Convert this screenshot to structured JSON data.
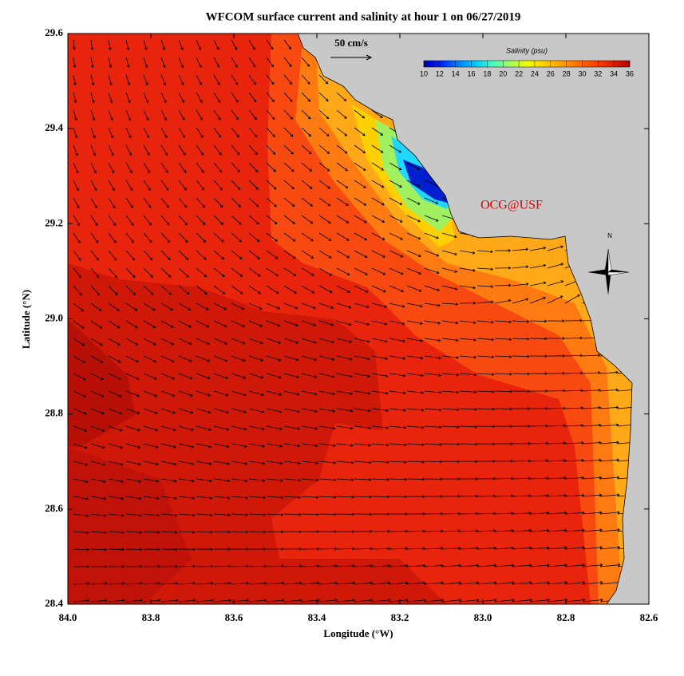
{
  "title": "WFCOM surface current and salinity at hour 1 on 06/27/2019",
  "map": {
    "xlabel": "Longitude (°W)",
    "ylabel": "Latitude (°N)",
    "xlim": [
      84.0,
      82.6
    ],
    "ylim": [
      28.4,
      29.6
    ],
    "xticks": [
      {
        "value": 84.0,
        "label": "84.0"
      },
      {
        "value": 83.8,
        "label": "83.8"
      },
      {
        "value": 83.6,
        "label": "83.6"
      },
      {
        "value": 83.4,
        "label": "83.4"
      },
      {
        "value": 83.2,
        "label": "83.2"
      },
      {
        "value": 83.0,
        "label": "83.0"
      },
      {
        "value": 82.8,
        "label": "82.8"
      },
      {
        "value": 82.6,
        "label": "82.6"
      }
    ],
    "yticks": [
      {
        "value": 28.4,
        "label": "28.4"
      },
      {
        "value": 28.6,
        "label": "28.6"
      },
      {
        "value": 28.8,
        "label": "28.8"
      },
      {
        "value": 29.0,
        "label": "29.0"
      },
      {
        "value": 29.2,
        "label": "29.2"
      },
      {
        "value": 29.4,
        "label": "29.4"
      },
      {
        "value": 29.6,
        "label": "29.6"
      }
    ]
  },
  "colorbar": {
    "title": "Salinity (psu)",
    "range": [
      10,
      36
    ],
    "ticks": [
      10,
      12,
      14,
      16,
      18,
      20,
      22,
      24,
      26,
      28,
      30,
      32,
      34,
      36
    ],
    "colors": [
      "#0000a0",
      "#0020ff",
      "#0080ff",
      "#00c8ff",
      "#40ffc0",
      "#a0ff60",
      "#f0ff00",
      "#ffd000",
      "#ffa000",
      "#ff7000",
      "#ff4000",
      "#e02000",
      "#b00000"
    ]
  },
  "scale_arrow": "50 cm/s",
  "credit": "OCG@USF",
  "compass": "N"
}
